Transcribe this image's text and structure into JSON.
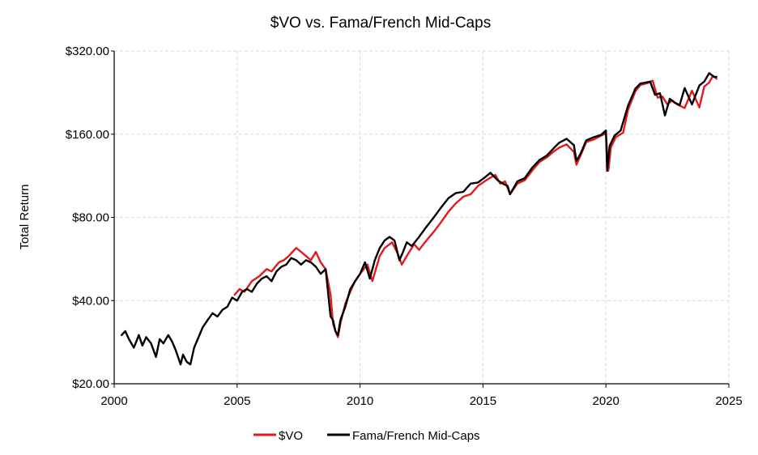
{
  "chart_data": {
    "type": "line",
    "title": "$VO vs. Fama/French Mid-Caps",
    "xlabel": "",
    "ylabel": "Total Return",
    "xlim": [
      2000,
      2025
    ],
    "ylim": [
      20,
      320
    ],
    "y_scale": "log2",
    "x_ticks": [
      2000,
      2005,
      2010,
      2015,
      2020,
      2025
    ],
    "x_tick_labels": [
      "2000",
      "2005",
      "2010",
      "2015",
      "2020",
      "2025"
    ],
    "y_ticks": [
      20,
      40,
      80,
      160,
      320
    ],
    "y_tick_labels": [
      "$20.00",
      "$40.00",
      "$80.00",
      "$160.00",
      "$320.00"
    ],
    "grid": true,
    "legend_position": "bottom-center",
    "colors": {
      "vo": "#e31a1c",
      "ff": "#000000",
      "grid": "#d9d9d9",
      "axis": "#000000"
    },
    "series": [
      {
        "name": "$VO",
        "x": [
          2004.9,
          2005.1,
          2005.3,
          2005.6,
          2005.9,
          2006.2,
          2006.4,
          2006.7,
          2006.9,
          2007.1,
          2007.4,
          2007.6,
          2007.8,
          2008.0,
          2008.2,
          2008.4,
          2008.6,
          2008.8,
          2008.9,
          2009.0,
          2009.1,
          2009.2,
          2009.4,
          2009.6,
          2009.8,
          2010.0,
          2010.3,
          2010.5,
          2010.8,
          2011.0,
          2011.3,
          2011.5,
          2011.7,
          2011.9,
          2012.2,
          2012.4,
          2012.7,
          2013.0,
          2013.3,
          2013.6,
          2013.9,
          2014.2,
          2014.5,
          2014.8,
          2015.2,
          2015.5,
          2015.7,
          2015.9,
          2016.1,
          2016.4,
          2016.7,
          2017.0,
          2017.3,
          2017.6,
          2017.9,
          2018.1,
          2018.4,
          2018.7,
          2018.8,
          2018.97,
          2019.2,
          2019.5,
          2019.8,
          2020.0,
          2020.1,
          2020.2,
          2020.4,
          2020.7,
          2020.9,
          2021.2,
          2021.4,
          2021.7,
          2021.9,
          2022.1,
          2022.3,
          2022.5,
          2022.7,
          2022.9,
          2023.2,
          2023.5,
          2023.8,
          2024.0,
          2024.2,
          2024.35,
          2024.5
        ],
        "values": [
          42,
          44,
          43,
          47,
          49,
          52,
          51,
          55,
          56,
          58,
          62,
          60,
          58,
          56,
          60,
          55,
          52,
          42,
          33,
          31,
          29.5,
          33,
          39,
          43,
          47,
          50,
          54,
          47,
          58,
          62,
          65,
          60,
          54,
          58,
          64,
          61,
          66,
          71,
          77,
          84,
          90,
          95,
          97,
          104,
          110,
          114,
          106,
          108,
          97,
          106,
          109,
          118,
          127,
          132,
          139,
          143,
          147,
          138,
          124,
          134,
          150,
          153,
          158,
          161,
          118,
          143,
          156,
          162,
          196,
          229,
          241,
          245,
          250,
          217,
          219,
          205,
          212,
          205,
          199,
          230,
          200,
          238,
          246,
          260,
          254
        ]
      },
      {
        "name": "Fama/French Mid-Caps",
        "x": [
          2000.3,
          2000.45,
          2000.6,
          2000.8,
          2001.0,
          2001.15,
          2001.3,
          2001.5,
          2001.7,
          2001.85,
          2002.0,
          2002.2,
          2002.35,
          2002.5,
          2002.7,
          2002.8,
          2002.95,
          2003.1,
          2003.25,
          2003.4,
          2003.6,
          2003.8,
          2004.0,
          2004.2,
          2004.4,
          2004.6,
          2004.8,
          2005.0,
          2005.2,
          2005.4,
          2005.6,
          2005.8,
          2006.0,
          2006.2,
          2006.4,
          2006.6,
          2006.8,
          2007.0,
          2007.2,
          2007.4,
          2007.6,
          2007.8,
          2008.0,
          2008.2,
          2008.4,
          2008.6,
          2008.8,
          2008.9,
          2009.0,
          2009.1,
          2009.2,
          2009.4,
          2009.6,
          2009.8,
          2010.0,
          2010.2,
          2010.4,
          2010.6,
          2010.8,
          2011.0,
          2011.2,
          2011.4,
          2011.6,
          2011.75,
          2011.9,
          2012.1,
          2012.4,
          2012.7,
          2013.0,
          2013.3,
          2013.6,
          2013.9,
          2014.2,
          2014.5,
          2014.8,
          2015.1,
          2015.3,
          2015.6,
          2015.8,
          2016.0,
          2016.1,
          2016.4,
          2016.7,
          2017.0,
          2017.3,
          2017.6,
          2017.9,
          2018.1,
          2018.4,
          2018.7,
          2018.8,
          2018.97,
          2019.2,
          2019.5,
          2019.8,
          2020.0,
          2020.05,
          2020.15,
          2020.35,
          2020.6,
          2020.9,
          2021.2,
          2021.4,
          2021.6,
          2021.8,
          2022.0,
          2022.2,
          2022.4,
          2022.6,
          2022.8,
          2023.0,
          2023.2,
          2023.5,
          2023.8,
          2024.0,
          2024.2,
          2024.4,
          2024.5
        ],
        "values": [
          30,
          31,
          29,
          27,
          30,
          27.5,
          29.5,
          28,
          25,
          29,
          28,
          30,
          28.5,
          26.5,
          23.5,
          25.5,
          24,
          23.5,
          27,
          29,
          32,
          34,
          36,
          35,
          37,
          38,
          41,
          40,
          43,
          44,
          43,
          46,
          48,
          49,
          47,
          51,
          53,
          54,
          57,
          56,
          54,
          56,
          55,
          53,
          50,
          52,
          35,
          34,
          31,
          30,
          34,
          38,
          44,
          47,
          50,
          55,
          48,
          56,
          62,
          66,
          68,
          66,
          56,
          60,
          65,
          63,
          68,
          74,
          80,
          87,
          94,
          98,
          99,
          106,
          107,
          112,
          116,
          109,
          106,
          104,
          97,
          108,
          111,
          121,
          129,
          134,
          143,
          149,
          154,
          146,
          128,
          136,
          152,
          156,
          159,
          165,
          118,
          145,
          158,
          165,
          203,
          234,
          244,
          246,
          248,
          222,
          225,
          187,
          215,
          208,
          204,
          235,
          205,
          240,
          248,
          266,
          258,
          258
        ]
      }
    ]
  }
}
